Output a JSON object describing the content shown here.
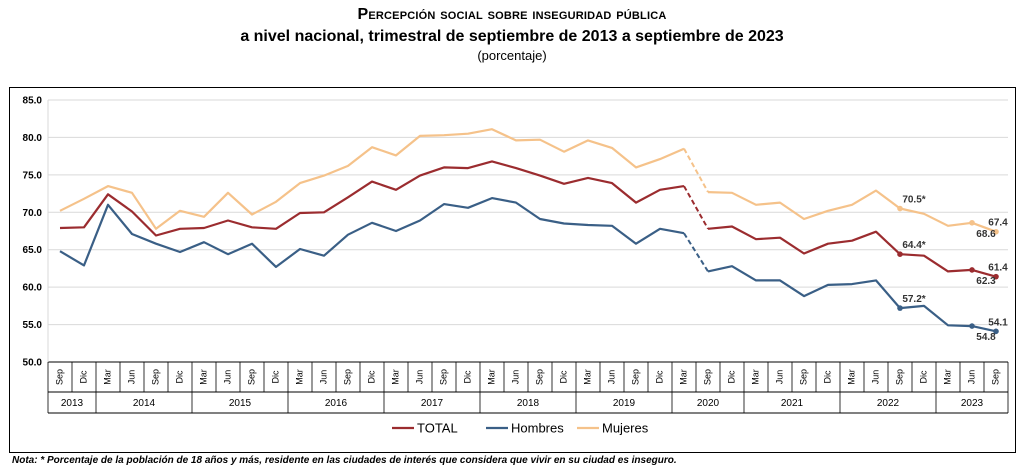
{
  "title_line1": "Percepción social sobre inseguridad pública",
  "title_line2": "a nivel nacional, trimestral de septiembre de 2013 a septiembre de 2023",
  "subtitle": "(porcentaje)",
  "footnote": "Nota: * Porcentaje de la población de 18 años y más, residente en las ciudades de interés que considera que vivir en su ciudad es inseguro.",
  "chart_data": {
    "type": "line",
    "title": "Percepción social sobre inseguridad pública a nivel nacional, trimestral de septiembre de 2013 a septiembre de 2023",
    "ylabel": "",
    "xlabel": "",
    "ylim": [
      50,
      85
    ],
    "yticks": [
      "50.0",
      "55.0",
      "60.0",
      "65.0",
      "70.0",
      "75.0",
      "80.0",
      "85.0"
    ],
    "grid": "horizontal",
    "legend_position": "bottom",
    "x": [
      "Sep",
      "Dic",
      "Mar",
      "Jun",
      "Sep",
      "Dic",
      "Mar",
      "Jun",
      "Sep",
      "Dic",
      "Mar",
      "Jun",
      "Sep",
      "Dic",
      "Mar",
      "Jun",
      "Sep",
      "Dic",
      "Mar",
      "Jun",
      "Sep",
      "Dic",
      "Mar",
      "Jun",
      "Sep",
      "Dic",
      "Mar",
      "Sep",
      "Dic",
      "Mar",
      "Jun",
      "Sep",
      "Dic",
      "Mar",
      "Jun",
      "Sep",
      "Dic",
      "Mar",
      "Jun",
      "Sep"
    ],
    "years": [
      {
        "label": "2013",
        "span": 2
      },
      {
        "label": "2014",
        "span": 4
      },
      {
        "label": "2015",
        "span": 4
      },
      {
        "label": "2016",
        "span": 4
      },
      {
        "label": "2017",
        "span": 4
      },
      {
        "label": "2018",
        "span": 4
      },
      {
        "label": "2019",
        "span": 4
      },
      {
        "label": "2020",
        "span": 3
      },
      {
        "label": "2021",
        "span": 4
      },
      {
        "label": "2022",
        "span": 4
      },
      {
        "label": "2023",
        "span": 3
      }
    ],
    "gap_segment": [
      26,
      27
    ],
    "series": [
      {
        "name": "TOTAL",
        "color": "#9b2c2f",
        "values": [
          67.9,
          68.0,
          72.4,
          70.1,
          66.9,
          67.8,
          67.9,
          68.9,
          68.0,
          67.8,
          69.9,
          70.0,
          72.0,
          74.1,
          73.0,
          74.9,
          76.0,
          75.9,
          76.8,
          75.9,
          74.9,
          73.8,
          74.6,
          73.9,
          71.3,
          73.0,
          73.5,
          67.8,
          68.1,
          66.4,
          66.6,
          64.5,
          65.8,
          66.2,
          67.4,
          64.4,
          64.2,
          62.1,
          62.3,
          61.4
        ],
        "marked": [
          35,
          38,
          39
        ],
        "labels": [
          {
            "i": 35,
            "text": "64.4*",
            "pos": "above"
          },
          {
            "i": 38,
            "text": "62.3",
            "pos": "below"
          },
          {
            "i": 39,
            "text": "61.4",
            "pos": "above"
          }
        ]
      },
      {
        "name": "Hombres",
        "color": "#3a5f86",
        "values": [
          64.8,
          62.9,
          71.0,
          67.1,
          65.8,
          64.7,
          66.0,
          64.4,
          65.8,
          62.7,
          65.1,
          64.2,
          67.0,
          68.6,
          67.5,
          68.9,
          71.1,
          70.6,
          71.9,
          71.3,
          69.1,
          68.5,
          68.3,
          68.2,
          65.8,
          67.8,
          67.2,
          62.1,
          62.8,
          60.9,
          60.9,
          58.8,
          60.3,
          60.4,
          60.9,
          57.2,
          57.5,
          54.9,
          54.8,
          54.1
        ],
        "marked": [
          35,
          38,
          39
        ],
        "labels": [
          {
            "i": 35,
            "text": "57.2*",
            "pos": "above"
          },
          {
            "i": 38,
            "text": "54.8",
            "pos": "below"
          },
          {
            "i": 39,
            "text": "54.1",
            "pos": "above"
          }
        ]
      },
      {
        "name": "Mujeres",
        "color": "#f5c28a",
        "values": [
          70.2,
          71.8,
          73.5,
          72.6,
          67.8,
          70.2,
          69.4,
          72.6,
          69.7,
          71.4,
          73.9,
          74.9,
          76.2,
          78.7,
          77.6,
          80.2,
          80.3,
          80.5,
          81.1,
          79.6,
          79.7,
          78.1,
          79.6,
          78.6,
          76.0,
          77.1,
          78.5,
          72.7,
          72.6,
          71.0,
          71.3,
          69.1,
          70.2,
          71.0,
          72.9,
          70.5,
          69.8,
          68.2,
          68.6,
          67.4
        ],
        "marked": [
          35,
          38,
          39
        ],
        "labels": [
          {
            "i": 35,
            "text": "70.5*",
            "pos": "above"
          },
          {
            "i": 38,
            "text": "68.6",
            "pos": "below"
          },
          {
            "i": 39,
            "text": "67.4",
            "pos": "above"
          }
        ]
      }
    ]
  }
}
